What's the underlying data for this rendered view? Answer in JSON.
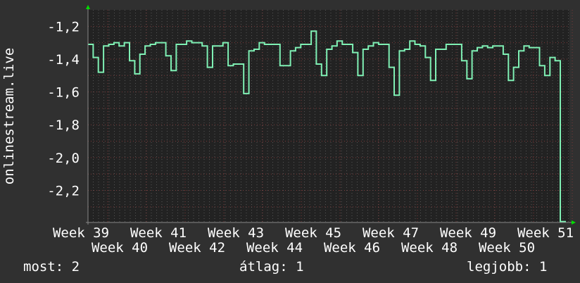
{
  "chart_data": {
    "type": "line",
    "ylabel": "onlinestream.live",
    "ylim": [
      -2.395,
      -1.1
    ],
    "yticks": [
      -1.2,
      -1.4,
      -1.6,
      -1.8,
      -2.0,
      -2.2
    ],
    "ytick_labels": [
      "-1,2",
      "-1,4",
      "-1,6",
      "-1,8",
      "-2,0",
      "-2,2"
    ],
    "xtick_labels": [
      "Week 39",
      "Week 40",
      "Week 41",
      "Week 42",
      "Week 43",
      "Week 44",
      "Week 45",
      "Week 46",
      "Week 47",
      "Week 48",
      "Week 49",
      "Week 50",
      "Week 51"
    ],
    "grid": true,
    "step": true,
    "series": [
      {
        "values": [
          -1.31,
          -1.39,
          -1.48,
          -1.32,
          -1.31,
          -1.3,
          -1.32,
          -1.3,
          -1.41,
          -1.49,
          -1.37,
          -1.32,
          -1.31,
          -1.3,
          -1.3,
          -1.38,
          -1.47,
          -1.31,
          -1.31,
          -1.29,
          -1.3,
          -1.3,
          -1.32,
          -1.45,
          -1.32,
          -1.32,
          -1.3,
          -1.44,
          -1.43,
          -1.43,
          -1.61,
          -1.35,
          -1.34,
          -1.3,
          -1.31,
          -1.31,
          -1.31,
          -1.44,
          -1.44,
          -1.35,
          -1.33,
          -1.31,
          -1.31,
          -1.23,
          -1.43,
          -1.5,
          -1.34,
          -1.32,
          -1.29,
          -1.31,
          -1.31,
          -1.36,
          -1.5,
          -1.34,
          -1.32,
          -1.3,
          -1.31,
          -1.31,
          -1.45,
          -1.62,
          -1.35,
          -1.34,
          -1.29,
          -1.31,
          -1.32,
          -1.39,
          -1.53,
          -1.34,
          -1.34,
          -1.31,
          -1.31,
          -1.31,
          -1.41,
          -1.52,
          -1.35,
          -1.33,
          -1.32,
          -1.33,
          -1.32,
          -1.32,
          -1.37,
          -1.53,
          -1.45,
          -1.35,
          -1.32,
          -1.33,
          -1.33,
          -1.44,
          -1.5,
          -1.39,
          -1.41,
          -2.39
        ]
      }
    ],
    "colors": {
      "background": "#303030",
      "plot": "#222222",
      "line": "#7ff0b4",
      "grid": "#555555",
      "major_grid": "#7a3a3a",
      "arrow": "#00dd00"
    }
  },
  "footer": {
    "current": "most: 2",
    "average": "átlag: 1",
    "best": "legjobb: 1"
  }
}
